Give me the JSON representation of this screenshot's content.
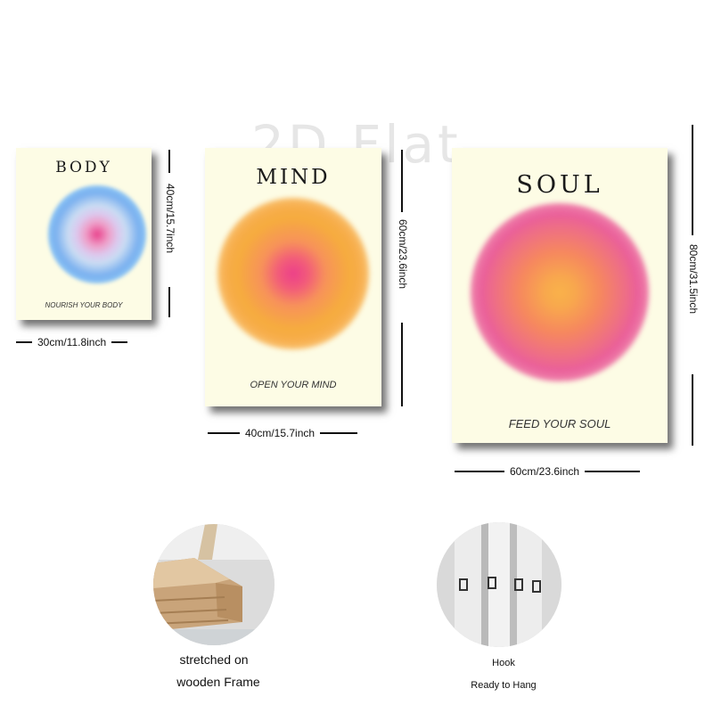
{
  "watermark": "2D Flat",
  "posters": {
    "body": {
      "title": "BODY",
      "tagline": "NOURISH YOUR BODY",
      "width_label": "30cm/11.8inch",
      "height_label": "40cm/15.7inch"
    },
    "mind": {
      "title": "MIND",
      "tagline": "OPEN YOUR MIND",
      "width_label": "40cm/15.7inch",
      "height_label": "60cm/23.6inch"
    },
    "soul": {
      "title": "SOUL",
      "tagline": "FEED YOUR SOUL",
      "width_label": "60cm/23.6inch",
      "height_label": "80cm/31.5inch"
    }
  },
  "features": {
    "frame": {
      "caption_line1": "stretched on",
      "caption_line2": "wooden Frame"
    },
    "hook": {
      "caption_line1": "Hook",
      "caption_line2": "Ready to Hang"
    }
  }
}
